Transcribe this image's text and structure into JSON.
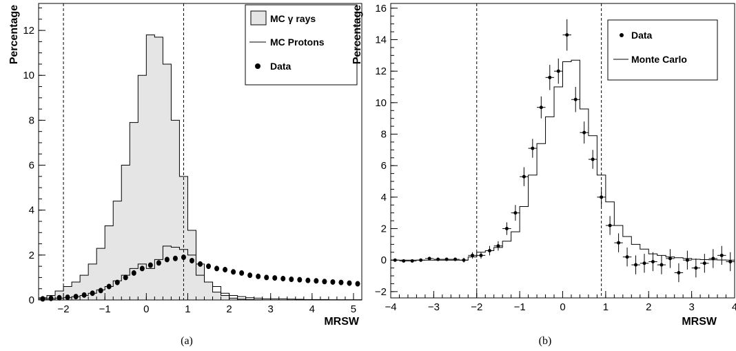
{
  "chart_data": [
    {
      "type": "histogram",
      "caption": "(a)",
      "xlabel": "MRSW",
      "ylabel": "Percentage",
      "xlim": [
        -2.6,
        5.2
      ],
      "ylim": [
        0,
        13.2
      ],
      "xticks": [
        -2,
        -1,
        0,
        1,
        2,
        3,
        4,
        5
      ],
      "yticks": [
        0,
        2,
        4,
        6,
        8,
        10,
        12
      ],
      "cut_lines": [
        -2.0,
        0.9
      ],
      "legend": {
        "position": "top-right",
        "entries": [
          "MC γ rays",
          "MC Protons",
          "Data"
        ]
      },
      "bin_edges": [
        -2.6,
        -2.4,
        -2.2,
        -2.0,
        -1.8,
        -1.6,
        -1.4,
        -1.2,
        -1.0,
        -0.8,
        -0.6,
        -0.4,
        -0.2,
        0.0,
        0.2,
        0.4,
        0.6,
        0.8,
        1.0,
        1.2,
        1.4,
        1.6,
        1.8,
        2.0,
        2.2,
        2.4,
        2.6,
        2.8,
        3.0,
        3.2,
        3.4,
        3.6,
        3.8,
        4.0,
        4.2,
        4.4,
        4.6,
        4.8,
        5.0,
        5.2
      ],
      "series": [
        {
          "name": "MC γ rays",
          "style": "filled-histogram",
          "color": "#e5e5e5",
          "values": [
            0.1,
            0.2,
            0.4,
            0.6,
            0.8,
            1.1,
            1.6,
            2.3,
            3.3,
            4.4,
            6.0,
            7.9,
            10.0,
            11.8,
            11.7,
            10.5,
            8.0,
            5.5,
            3.1,
            1.6,
            0.8,
            0.35,
            0.2,
            0.08,
            0.04,
            0.02,
            0.01,
            0,
            0,
            0,
            0,
            0,
            0,
            0,
            0,
            0,
            0,
            0,
            0
          ]
        },
        {
          "name": "MC Protons",
          "style": "histogram",
          "color": "#000000",
          "values": [
            0.05,
            0.05,
            0.08,
            0.1,
            0.15,
            0.2,
            0.3,
            0.45,
            0.6,
            0.85,
            1.1,
            1.4,
            1.6,
            1.4,
            1.8,
            2.4,
            2.35,
            2.25,
            2.0,
            1.1,
            0.8,
            0.6,
            0.3,
            0.2,
            0.15,
            0.1,
            0.08,
            0.05,
            0.05,
            0.05,
            0.04,
            0.03,
            0.02,
            0.02,
            0.02,
            0.01,
            0.01,
            0.01,
            0.01
          ]
        },
        {
          "name": "Data",
          "style": "markers",
          "color": "#000000",
          "x": [
            -2.5,
            -2.3,
            -2.1,
            -1.9,
            -1.7,
            -1.5,
            -1.3,
            -1.1,
            -0.9,
            -0.7,
            -0.5,
            -0.3,
            -0.1,
            0.1,
            0.3,
            0.5,
            0.7,
            0.9,
            1.1,
            1.3,
            1.5,
            1.7,
            1.9,
            2.1,
            2.3,
            2.5,
            2.7,
            2.9,
            3.1,
            3.3,
            3.5,
            3.7,
            3.9,
            4.1,
            4.3,
            4.5,
            4.7,
            4.9,
            5.1
          ],
          "values": [
            0.05,
            0.07,
            0.1,
            0.12,
            0.15,
            0.22,
            0.3,
            0.42,
            0.6,
            0.78,
            1.0,
            1.2,
            1.4,
            1.55,
            1.65,
            1.8,
            1.85,
            1.9,
            1.75,
            1.6,
            1.5,
            1.4,
            1.35,
            1.25,
            1.2,
            1.1,
            1.05,
            1.0,
            0.98,
            0.95,
            0.92,
            0.9,
            0.87,
            0.85,
            0.82,
            0.8,
            0.78,
            0.75,
            0.72
          ]
        }
      ]
    },
    {
      "type": "histogram",
      "caption": "(b)",
      "xlabel": "MRSW",
      "ylabel": "Percentage",
      "xlim": [
        -4,
        4
      ],
      "ylim": [
        -2.4,
        16.3
      ],
      "xticks": [
        -4,
        -3,
        -2,
        -1,
        0,
        1,
        2,
        3,
        4
      ],
      "yticks": [
        -2,
        0,
        2,
        4,
        6,
        8,
        10,
        12,
        14,
        16
      ],
      "cut_lines": [
        -2.0,
        0.9
      ],
      "legend": {
        "position": "top-right",
        "entries": [
          "Data",
          "Monte Carlo"
        ]
      },
      "bin_edges": [
        -4.0,
        -3.8,
        -3.6,
        -3.4,
        -3.2,
        -3.0,
        -2.8,
        -2.6,
        -2.4,
        -2.2,
        -2.0,
        -1.8,
        -1.6,
        -1.4,
        -1.2,
        -1.0,
        -0.8,
        -0.6,
        -0.4,
        -0.2,
        0.0,
        0.2,
        0.4,
        0.6,
        0.8,
        1.0,
        1.2,
        1.4,
        1.6,
        1.8,
        2.0,
        2.2,
        2.4,
        2.6,
        2.8,
        3.0,
        3.2,
        3.4,
        3.6,
        3.8,
        4.0
      ],
      "series": [
        {
          "name": "Monte Carlo",
          "style": "histogram",
          "color": "#000000",
          "values": [
            0,
            0,
            0,
            0,
            0,
            0,
            0,
            0,
            0,
            0.2,
            0.5,
            0.6,
            0.8,
            1.2,
            1.8,
            3.4,
            5.4,
            7.4,
            9.1,
            11.0,
            12.6,
            12.7,
            9.6,
            7.9,
            5.4,
            3.7,
            2.2,
            1.5,
            1.0,
            0.7,
            0.4,
            0.3,
            0.2,
            0.15,
            0.1,
            0.05,
            0.03,
            0.02,
            0.01,
            0
          ]
        },
        {
          "name": "Data",
          "style": "markers-errors",
          "color": "#000000",
          "x": [
            -3.9,
            -3.7,
            -3.5,
            -3.3,
            -3.1,
            -2.9,
            -2.7,
            -2.5,
            -2.3,
            -2.1,
            -1.9,
            -1.7,
            -1.5,
            -1.3,
            -1.1,
            -0.9,
            -0.7,
            -0.5,
            -0.3,
            -0.1,
            0.1,
            0.3,
            0.5,
            0.7,
            0.9,
            1.1,
            1.3,
            1.5,
            1.7,
            1.9,
            2.1,
            2.3,
            2.5,
            2.7,
            2.9,
            3.1,
            3.3,
            3.5,
            3.7,
            3.9
          ],
          "values": [
            0.0,
            -0.05,
            -0.05,
            0.0,
            0.1,
            0.05,
            0.05,
            0.05,
            0.0,
            0.3,
            0.3,
            0.6,
            0.9,
            2.0,
            3.0,
            5.3,
            7.1,
            9.7,
            11.6,
            12.0,
            14.3,
            10.2,
            8.1,
            6.4,
            4.0,
            2.2,
            1.1,
            0.2,
            -0.3,
            -0.2,
            -0.1,
            -0.3,
            0.1,
            -0.8,
            0.0,
            -0.5,
            -0.2,
            0.1,
            0.3,
            -0.1
          ],
          "errors": [
            0.05,
            0.05,
            0.05,
            0.05,
            0.1,
            0.1,
            0.1,
            0.1,
            0.15,
            0.2,
            0.2,
            0.3,
            0.3,
            0.4,
            0.5,
            0.6,
            0.6,
            0.7,
            0.8,
            0.8,
            1.0,
            0.8,
            0.7,
            0.6,
            0.6,
            0.6,
            0.6,
            0.6,
            0.6,
            0.6,
            0.6,
            0.6,
            0.6,
            0.6,
            0.6,
            0.6,
            0.6,
            0.6,
            0.6,
            0.6
          ]
        }
      ]
    }
  ]
}
